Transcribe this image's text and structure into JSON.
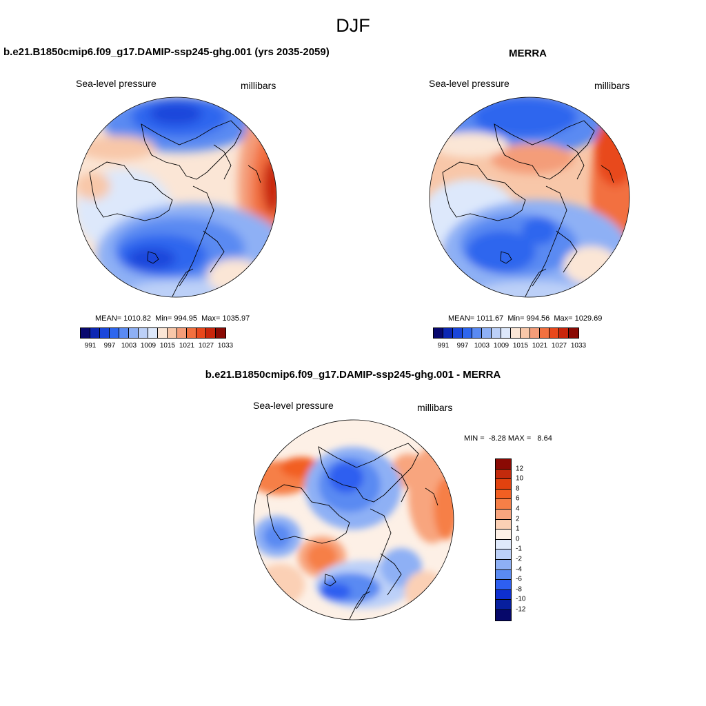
{
  "figure": {
    "season": "DJF"
  },
  "panels": [
    {
      "title": "b.e21.B1850cmip6.f09_g17.DAMIP-ssp245-ghg.001 (yrs 2035-2059)",
      "variable": "Sea-level pressure",
      "units": "millibars",
      "stats": {
        "mean_label": "MEAN=",
        "mean": "1010.82",
        "min_label": "Min=",
        "min": "994.95",
        "max_label": "Max=",
        "max": "1035.97"
      },
      "colorbar_labels": [
        "991",
        "997",
        "1003",
        "1009",
        "1015",
        "1021",
        "1027",
        "1033"
      ]
    },
    {
      "title": "MERRA",
      "variable": "Sea-level pressure",
      "units": "millibars",
      "stats": {
        "mean_label": "MEAN=",
        "mean": "1011.67",
        "min_label": "Min=",
        "min": "994.56",
        "max_label": "Max=",
        "max": "1029.69"
      },
      "colorbar_labels": [
        "991",
        "997",
        "1003",
        "1009",
        "1015",
        "1021",
        "1027",
        "1033"
      ]
    },
    {
      "title": "b.e21.B1850cmip6.f09_g17.DAMIP-ssp245-ghg.001 - MERRA",
      "variable": "Sea-level pressure",
      "units": "millibars",
      "stats": {
        "min_label": "MIN =",
        "min": "-8.28",
        "max_label": "MAX =",
        "max": "8.64"
      },
      "colorbar_labels": [
        "12",
        "10",
        "8",
        "6",
        "4",
        "2",
        "1",
        "0",
        "-1",
        "-2",
        "-4",
        "-6",
        "-8",
        "-10",
        "-12"
      ]
    }
  ],
  "colors": {
    "sequential": [
      "#08086e",
      "#0c27b3",
      "#1a46db",
      "#2e66ee",
      "#5a8af2",
      "#8eb0f5",
      "#bcd0f8",
      "#dde8fb",
      "#fbe6d6",
      "#f8c7a9",
      "#f49d79",
      "#f2703f",
      "#e8481c",
      "#c8260c",
      "#8a0a04"
    ],
    "diverging": [
      "#8a0a04",
      "#c32a0c",
      "#e1420f",
      "#f25f22",
      "#f67f47",
      "#f8a57e",
      "#fbd0b5",
      "#fdf0e6",
      "#dfe9fb",
      "#bcd0f8",
      "#8eb0f5",
      "#5a8af2",
      "#2e5ff0",
      "#0e2fd0",
      "#071f9e",
      "#06086a"
    ],
    "coastline": "#000000"
  }
}
